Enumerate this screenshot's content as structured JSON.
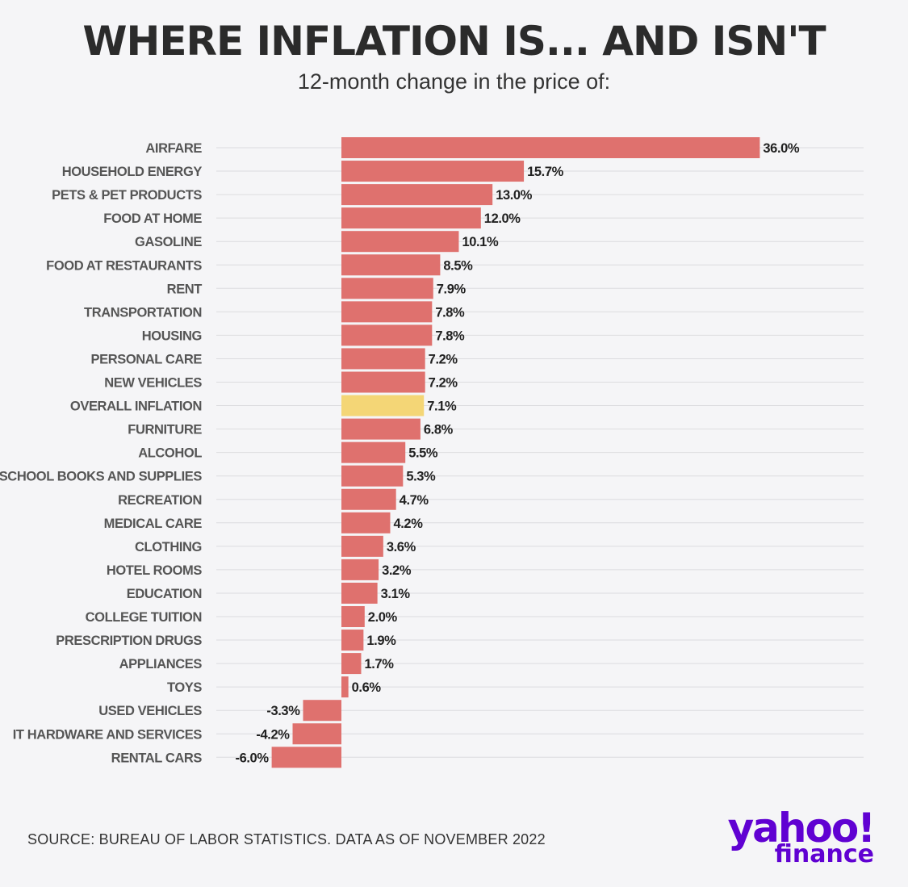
{
  "header": {
    "title": "WHERE INFLATION IS... AND ISN'T",
    "subtitle": "12-month change in the price of:"
  },
  "footer": {
    "source": "SOURCE: BUREAU OF LABOR STATISTICS. DATA AS OF NOVEMBER 2022"
  },
  "logo": {
    "word": "yahoo!",
    "sub": "finance",
    "color": "#6001d2"
  },
  "colors": {
    "bar": "#df716e",
    "highlight": "#f4d676",
    "grid": "#dcdcdf",
    "label": "#555555",
    "value": "#222222"
  },
  "chart_data": {
    "type": "bar",
    "orientation": "horizontal",
    "title": "WHERE INFLATION IS... AND ISN'T",
    "subtitle": "12-month change in the price of:",
    "unit": "%",
    "highlight_category": "OVERALL INFLATION",
    "categories": [
      "AIRFARE",
      "HOUSEHOLD ENERGY",
      "PETS & PET PRODUCTS",
      "FOOD AT HOME",
      "GASOLINE",
      "FOOD AT RESTAURANTS",
      "RENT",
      "TRANSPORTATION",
      "HOUSING",
      "PERSONAL CARE",
      "NEW VEHICLES",
      "OVERALL INFLATION",
      "FURNITURE",
      "ALCOHOL",
      "SCHOOL BOOKS AND SUPPLIES",
      "RECREATION",
      "MEDICAL CARE",
      "CLOTHING",
      "HOTEL ROOMS",
      "EDUCATION",
      "COLLEGE TUITION",
      "PRESCRIPTION DRUGS",
      "APPLIANCES",
      "TOYS",
      "USED VEHICLES",
      "IT HARDWARE AND SERVICES",
      "RENTAL CARS"
    ],
    "values": [
      36.0,
      15.7,
      13.0,
      12.0,
      10.1,
      8.5,
      7.9,
      7.8,
      7.8,
      7.2,
      7.2,
      7.1,
      6.8,
      5.5,
      5.3,
      4.7,
      4.2,
      3.6,
      3.2,
      3.1,
      2.0,
      1.9,
      1.7,
      0.6,
      -3.3,
      -4.2,
      -6.0
    ],
    "value_labels": [
      "36.0%",
      "15.7%",
      "13.0%",
      "12.0%",
      "10.1%",
      "8.5%",
      "7.9%",
      "7.8%",
      "7.8%",
      "7.2%",
      "7.2%",
      "7.1%",
      "6.8%",
      "5.5%",
      "5.3%",
      "4.7%",
      "4.2%",
      "3.6%",
      "3.2%",
      "3.1%",
      "2.0%",
      "1.9%",
      "1.7%",
      "0.6%",
      "-3.3%",
      "-4.2%",
      "-6.0%"
    ],
    "xlim": [
      -6.0,
      36.0
    ],
    "grid": true,
    "legend": "none"
  }
}
